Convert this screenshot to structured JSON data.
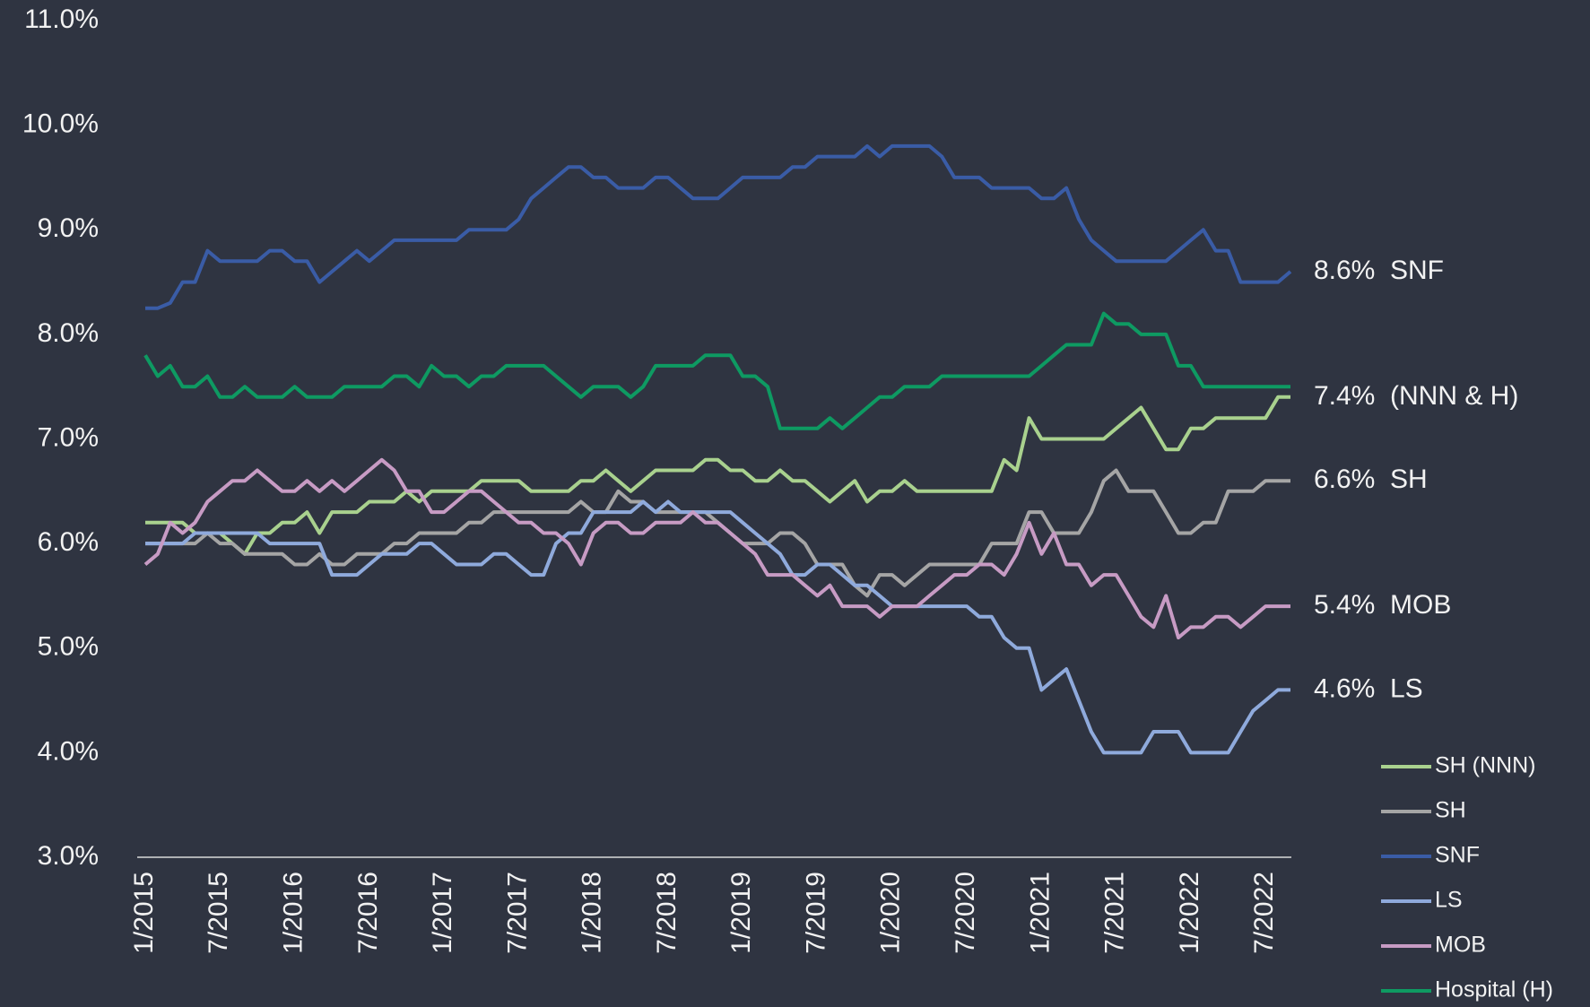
{
  "chart_data": {
    "type": "line",
    "categories": [
      "1/2015",
      null,
      null,
      null,
      null,
      null,
      "7/2015",
      null,
      null,
      null,
      null,
      null,
      "1/2016",
      null,
      null,
      null,
      null,
      null,
      "7/2016",
      null,
      null,
      null,
      null,
      null,
      "1/2017",
      null,
      null,
      null,
      null,
      null,
      "7/2017",
      null,
      null,
      null,
      null,
      null,
      "1/2018",
      null,
      null,
      null,
      null,
      null,
      "7/2018",
      null,
      null,
      null,
      null,
      null,
      "1/2019",
      null,
      null,
      null,
      null,
      null,
      "7/2019",
      null,
      null,
      null,
      null,
      null,
      "1/2020",
      null,
      null,
      null,
      null,
      null,
      "7/2020",
      null,
      null,
      null,
      null,
      null,
      "1/2021",
      null,
      null,
      null,
      null,
      null,
      "7/2021",
      null,
      null,
      null,
      null,
      null,
      "1/2022",
      null,
      null,
      null,
      null,
      null,
      "7/2022",
      null,
      null
    ],
    "ylim": [
      3.0,
      11.0
    ],
    "yticks": [
      {
        "value": 3.0,
        "label": "3.0%"
      },
      {
        "value": 4.0,
        "label": "4.0%"
      },
      {
        "value": 5.0,
        "label": "5.0%"
      },
      {
        "value": 6.0,
        "label": "6.0%"
      },
      {
        "value": 7.0,
        "label": "7.0%"
      },
      {
        "value": 8.0,
        "label": "8.0%"
      },
      {
        "value": 9.0,
        "label": "9.0%"
      },
      {
        "value": 10.0,
        "label": "10.0%"
      },
      {
        "value": 11.0,
        "label": "11.0%"
      }
    ],
    "grid": false,
    "legend_position": "lower right",
    "series": [
      {
        "name": "SH (NNN)",
        "color": "#a9d18e",
        "values": [
          6.2,
          6.2,
          6.2,
          6.2,
          6.1,
          6.1,
          6.1,
          6.0,
          5.9,
          6.1,
          6.1,
          6.2,
          6.2,
          6.3,
          6.1,
          6.3,
          6.3,
          6.3,
          6.4,
          6.4,
          6.4,
          6.5,
          6.4,
          6.5,
          6.5,
          6.5,
          6.5,
          6.6,
          6.6,
          6.6,
          6.6,
          6.5,
          6.5,
          6.5,
          6.5,
          6.6,
          6.6,
          6.7,
          6.6,
          6.5,
          6.6,
          6.7,
          6.7,
          6.7,
          6.7,
          6.8,
          6.8,
          6.7,
          6.7,
          6.6,
          6.6,
          6.7,
          6.6,
          6.6,
          6.5,
          6.4,
          6.5,
          6.6,
          6.4,
          6.5,
          6.5,
          6.6,
          6.5,
          6.5,
          6.5,
          6.5,
          6.5,
          6.5,
          6.5,
          6.8,
          6.7,
          7.2,
          7.0,
          7.0,
          7.0,
          7.0,
          7.0,
          7.0,
          7.1,
          7.2,
          7.3,
          7.1,
          6.9,
          6.9,
          7.1,
          7.1,
          7.2,
          7.2,
          7.2,
          7.2,
          7.2,
          7.4,
          7.4
        ]
      },
      {
        "name": "SH",
        "color": "#a5a5a5",
        "values": [
          6.0,
          6.0,
          6.0,
          6.0,
          6.0,
          6.1,
          6.0,
          6.0,
          5.9,
          5.9,
          5.9,
          5.9,
          5.8,
          5.8,
          5.9,
          5.8,
          5.8,
          5.9,
          5.9,
          5.9,
          6.0,
          6.0,
          6.1,
          6.1,
          6.1,
          6.1,
          6.2,
          6.2,
          6.3,
          6.3,
          6.3,
          6.3,
          6.3,
          6.3,
          6.3,
          6.4,
          6.3,
          6.3,
          6.5,
          6.4,
          6.4,
          6.3,
          6.3,
          6.3,
          6.3,
          6.3,
          6.2,
          6.1,
          6.0,
          6.0,
          6.0,
          6.1,
          6.1,
          6.0,
          5.8,
          5.8,
          5.8,
          5.6,
          5.5,
          5.7,
          5.7,
          5.6,
          5.7,
          5.8,
          5.8,
          5.8,
          5.8,
          5.8,
          6.0,
          6.0,
          6.0,
          6.3,
          6.3,
          6.1,
          6.1,
          6.1,
          6.3,
          6.6,
          6.7,
          6.5,
          6.5,
          6.5,
          6.3,
          6.1,
          6.1,
          6.2,
          6.2,
          6.5,
          6.5,
          6.5,
          6.6,
          6.6,
          6.6
        ]
      },
      {
        "name": "SNF",
        "color": "#3a5ca6",
        "values": [
          8.25,
          8.25,
          8.3,
          8.5,
          8.5,
          8.8,
          8.7,
          8.7,
          8.7,
          8.7,
          8.8,
          8.8,
          8.7,
          8.7,
          8.5,
          8.6,
          8.7,
          8.8,
          8.7,
          8.8,
          8.9,
          8.9,
          8.9,
          8.9,
          8.9,
          8.9,
          9.0,
          9.0,
          9.0,
          9.0,
          9.1,
          9.3,
          9.4,
          9.5,
          9.6,
          9.6,
          9.5,
          9.5,
          9.4,
          9.4,
          9.4,
          9.5,
          9.5,
          9.4,
          9.3,
          9.3,
          9.3,
          9.4,
          9.5,
          9.5,
          9.5,
          9.5,
          9.6,
          9.6,
          9.7,
          9.7,
          9.7,
          9.7,
          9.8,
          9.7,
          9.8,
          9.8,
          9.8,
          9.8,
          9.7,
          9.5,
          9.5,
          9.5,
          9.4,
          9.4,
          9.4,
          9.4,
          9.3,
          9.3,
          9.4,
          9.1,
          8.9,
          8.8,
          8.7,
          8.7,
          8.7,
          8.7,
          8.7,
          8.8,
          8.9,
          9.0,
          8.8,
          8.8,
          8.5,
          8.5,
          8.5,
          8.5,
          8.6
        ]
      },
      {
        "name": "LS",
        "color": "#8faadc",
        "values": [
          6.0,
          6.0,
          6.0,
          6.0,
          6.1,
          6.1,
          6.1,
          6.1,
          6.1,
          6.1,
          6.0,
          6.0,
          6.0,
          6.0,
          6.0,
          5.7,
          5.7,
          5.7,
          5.8,
          5.9,
          5.9,
          5.9,
          6.0,
          6.0,
          5.9,
          5.8,
          5.8,
          5.8,
          5.9,
          5.9,
          5.8,
          5.7,
          5.7,
          6.0,
          6.1,
          6.1,
          6.3,
          6.3,
          6.3,
          6.3,
          6.4,
          6.3,
          6.4,
          6.3,
          6.3,
          6.3,
          6.3,
          6.3,
          6.2,
          6.1,
          6.0,
          5.9,
          5.7,
          5.7,
          5.8,
          5.8,
          5.7,
          5.6,
          5.6,
          5.5,
          5.4,
          5.4,
          5.4,
          5.4,
          5.4,
          5.4,
          5.4,
          5.3,
          5.3,
          5.1,
          5.0,
          5.0,
          4.6,
          4.7,
          4.8,
          4.5,
          4.2,
          4.0,
          4.0,
          4.0,
          4.0,
          4.2,
          4.2,
          4.2,
          4.0,
          4.0,
          4.0,
          4.0,
          4.2,
          4.4,
          4.5,
          4.6,
          4.6
        ]
      },
      {
        "name": "MOB",
        "color": "#c79bc4",
        "values": [
          5.8,
          5.9,
          6.2,
          6.1,
          6.2,
          6.4,
          6.5,
          6.6,
          6.6,
          6.7,
          6.6,
          6.5,
          6.5,
          6.6,
          6.5,
          6.6,
          6.5,
          6.6,
          6.7,
          6.8,
          6.7,
          6.5,
          6.5,
          6.3,
          6.3,
          6.4,
          6.5,
          6.5,
          6.4,
          6.3,
          6.2,
          6.2,
          6.1,
          6.1,
          6.0,
          5.8,
          6.1,
          6.2,
          6.2,
          6.1,
          6.1,
          6.2,
          6.2,
          6.2,
          6.3,
          6.2,
          6.2,
          6.1,
          6.0,
          5.9,
          5.7,
          5.7,
          5.7,
          5.6,
          5.5,
          5.6,
          5.4,
          5.4,
          5.4,
          5.3,
          5.4,
          5.4,
          5.4,
          5.5,
          5.6,
          5.7,
          5.7,
          5.8,
          5.8,
          5.7,
          5.9,
          6.2,
          5.9,
          6.1,
          5.8,
          5.8,
          5.6,
          5.7,
          5.7,
          5.5,
          5.3,
          5.2,
          5.5,
          5.1,
          5.2,
          5.2,
          5.3,
          5.3,
          5.2,
          5.3,
          5.4,
          5.4,
          5.4
        ]
      },
      {
        "name": "Hospital (H)",
        "color": "#0e9a62",
        "values": [
          7.8,
          7.6,
          7.7,
          7.5,
          7.5,
          7.6,
          7.4,
          7.4,
          7.5,
          7.4,
          7.4,
          7.4,
          7.5,
          7.4,
          7.4,
          7.4,
          7.5,
          7.5,
          7.5,
          7.5,
          7.6,
          7.6,
          7.5,
          7.7,
          7.6,
          7.6,
          7.5,
          7.6,
          7.6,
          7.7,
          7.7,
          7.7,
          7.7,
          7.6,
          7.5,
          7.4,
          7.5,
          7.5,
          7.5,
          7.4,
          7.5,
          7.7,
          7.7,
          7.7,
          7.7,
          7.8,
          7.8,
          7.8,
          7.6,
          7.6,
          7.5,
          7.1,
          7.1,
          7.1,
          7.1,
          7.2,
          7.1,
          7.2,
          7.3,
          7.4,
          7.4,
          7.5,
          7.5,
          7.5,
          7.6,
          7.6,
          7.6,
          7.6,
          7.6,
          7.6,
          7.6,
          7.6,
          7.7,
          7.8,
          7.9,
          7.9,
          7.9,
          8.2,
          8.1,
          8.1,
          8.0,
          8.0,
          8.0,
          7.7,
          7.7,
          7.5,
          7.5,
          7.5,
          7.5,
          7.5,
          7.5,
          7.5,
          7.5
        ]
      }
    ],
    "annotations": [
      {
        "text": "8.6%  SNF",
        "value": 8.6
      },
      {
        "text": "7.4%  (NNN & H)",
        "value": 7.4
      },
      {
        "text": "6.6%  SH",
        "value": 6.6
      },
      {
        "text": "5.4%  MOB",
        "value": 5.4
      },
      {
        "text": "4.6%  LS",
        "value": 4.6
      }
    ]
  }
}
